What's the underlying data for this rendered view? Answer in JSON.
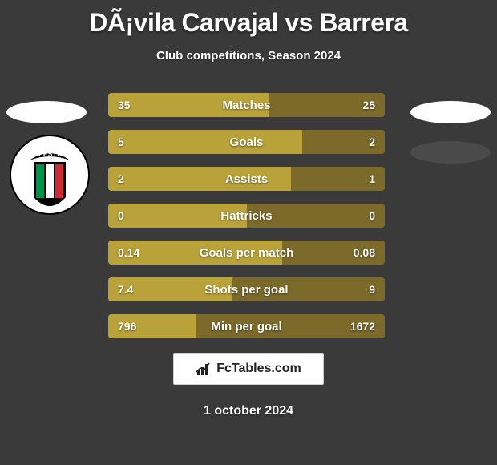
{
  "title": "DÃ¡vila Carvajal vs Barrera",
  "subtitle": "Club competitions, Season 2024",
  "date": "1 october 2024",
  "footer_brand": "FcTables.com",
  "colors": {
    "background": "#3a3a3a",
    "bar_left": "#b9a23a",
    "bar_right": "#7b6a2a",
    "text": "#ffffff",
    "footer_bg": "#ffffff",
    "footer_text": "#222222"
  },
  "stats": [
    {
      "label": "Matches",
      "left_val": "35",
      "right_val": "25",
      "left_pct": 58
    },
    {
      "label": "Goals",
      "left_val": "5",
      "right_val": "2",
      "left_pct": 70
    },
    {
      "label": "Assists",
      "left_val": "2",
      "right_val": "1",
      "left_pct": 66
    },
    {
      "label": "Hattricks",
      "left_val": "0",
      "right_val": "0",
      "left_pct": 50
    },
    {
      "label": "Goals per match",
      "left_val": "0.14",
      "right_val": "0.08",
      "left_pct": 63
    },
    {
      "label": "Shots per goal",
      "left_val": "7.4",
      "right_val": "9",
      "left_pct": 45
    },
    {
      "label": "Min per goal",
      "left_val": "796",
      "right_val": "1672",
      "left_pct": 32
    }
  ],
  "crest": {
    "name": "Palestino",
    "top_text": "PALESTINO",
    "stripe_colors": [
      "#009246",
      "#ffffff",
      "#ce2b37"
    ]
  }
}
